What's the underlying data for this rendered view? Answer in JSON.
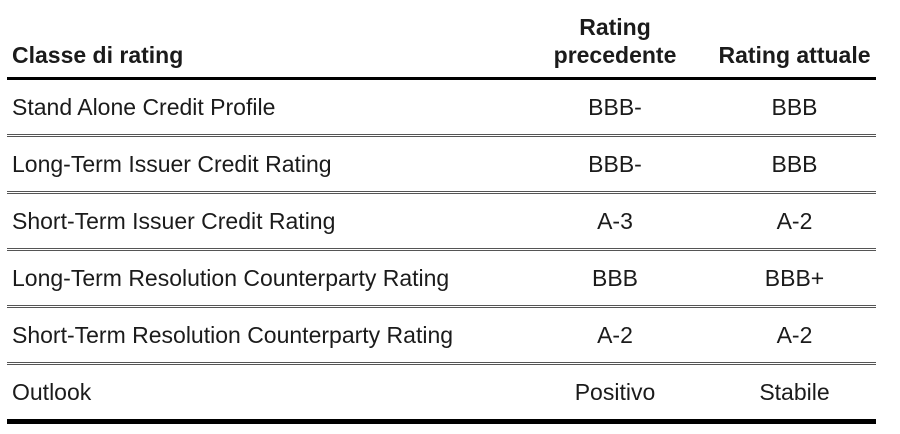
{
  "table": {
    "header": {
      "class_label": "Classe di rating",
      "previous_label": "Rating precedente",
      "current_label": "Rating attuale"
    },
    "rows": [
      {
        "label": "Stand Alone Credit Profile",
        "previous": "BBB-",
        "current": "BBB"
      },
      {
        "label": "Long-Term Issuer Credit Rating",
        "previous": "BBB-",
        "current": "BBB"
      },
      {
        "label": "Short-Term Issuer Credit Rating",
        "previous": "A-3",
        "current": "A-2"
      },
      {
        "label": "Long-Term Resolution Counterparty Rating",
        "previous": "BBB",
        "current": "BBB+"
      },
      {
        "label": "Short-Term Resolution Counterparty Rating",
        "previous": "A-2",
        "current": "A-2"
      },
      {
        "label": "Outlook",
        "previous": "Positivo",
        "current": "Stabile"
      }
    ],
    "colors": {
      "text": "#1b1b1b",
      "heavy_rule": "#000000",
      "light_rule": "#555555",
      "background": "#ffffff"
    }
  }
}
